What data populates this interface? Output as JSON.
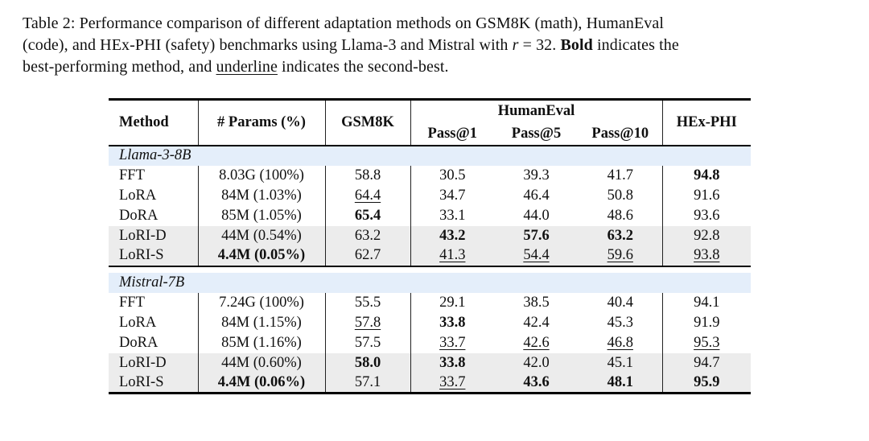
{
  "caption": {
    "lines": [
      {
        "segments": [
          {
            "text": "Table 2: Performance comparison of different adaptation methods on GSM8K (math), HumanEval",
            "style": "normal"
          }
        ]
      },
      {
        "segments": [
          {
            "text": "(code), and HEx-PHI (safety) benchmarks using Llama-3 and Mistral with ",
            "style": "normal"
          },
          {
            "text": "r",
            "style": "italic"
          },
          {
            "text": " = 32. ",
            "style": "normal"
          },
          {
            "text": "Bold",
            "style": "bold"
          },
          {
            "text": " indicates the",
            "style": "normal"
          }
        ]
      },
      {
        "segments": [
          {
            "text": "best-performing method, and ",
            "style": "normal"
          },
          {
            "text": "underline",
            "style": "underline"
          },
          {
            "text": " indicates the second-best.",
            "style": "normal"
          }
        ]
      }
    ]
  },
  "table": {
    "header": {
      "method": "Method",
      "params": "# Params (%)",
      "gsm8k": "GSM8K",
      "humaneval_group": "HumanEval",
      "pass1": "Pass@1",
      "pass5": "Pass@5",
      "pass10": "Pass@10",
      "hexphi": "HEx-PHI"
    },
    "colors": {
      "section_row_bg": "#e4eefa",
      "lori_row_bg": "#ececec",
      "rule_color": "#000000"
    },
    "sections": [
      {
        "title": "Llama-3-8B",
        "rows": [
          {
            "shaded": false,
            "cells": [
              {
                "text": "FFT",
                "style": "normal"
              },
              {
                "text": "8.03G (100%)",
                "style": "normal"
              },
              {
                "text": "58.8",
                "style": "normal"
              },
              {
                "text": "30.5",
                "style": "normal"
              },
              {
                "text": "39.3",
                "style": "normal"
              },
              {
                "text": "41.7",
                "style": "normal"
              },
              {
                "text": "94.8",
                "style": "bold"
              }
            ]
          },
          {
            "shaded": false,
            "cells": [
              {
                "text": "LoRA",
                "style": "normal"
              },
              {
                "text": "84M (1.03%)",
                "style": "normal"
              },
              {
                "text": "64.4",
                "style": "underline"
              },
              {
                "text": "34.7",
                "style": "normal"
              },
              {
                "text": "46.4",
                "style": "normal"
              },
              {
                "text": "50.8",
                "style": "normal"
              },
              {
                "text": "91.6",
                "style": "normal"
              }
            ]
          },
          {
            "shaded": false,
            "cells": [
              {
                "text": "DoRA",
                "style": "normal"
              },
              {
                "text": "85M (1.05%)",
                "style": "normal"
              },
              {
                "text": "65.4",
                "style": "bold"
              },
              {
                "text": "33.1",
                "style": "normal"
              },
              {
                "text": "44.0",
                "style": "normal"
              },
              {
                "text": "48.6",
                "style": "normal"
              },
              {
                "text": "93.6",
                "style": "normal"
              }
            ]
          },
          {
            "shaded": true,
            "cells": [
              {
                "text": "LoRI-D",
                "style": "normal"
              },
              {
                "text": "44M (0.54%)",
                "style": "normal"
              },
              {
                "text": "63.2",
                "style": "normal"
              },
              {
                "text": "43.2",
                "style": "bold"
              },
              {
                "text": "57.6",
                "style": "bold"
              },
              {
                "text": "63.2",
                "style": "bold"
              },
              {
                "text": "92.8",
                "style": "normal"
              }
            ]
          },
          {
            "shaded": true,
            "cells": [
              {
                "text": "LoRI-S",
                "style": "normal"
              },
              {
                "text": "4.4M (0.05%)",
                "style": "bold"
              },
              {
                "text": "62.7",
                "style": "normal"
              },
              {
                "text": "41.3",
                "style": "underline"
              },
              {
                "text": "54.4",
                "style": "underline"
              },
              {
                "text": "59.6",
                "style": "underline"
              },
              {
                "text": "93.8",
                "style": "underline"
              }
            ]
          }
        ]
      },
      {
        "title": "Mistral-7B",
        "rows": [
          {
            "shaded": false,
            "cells": [
              {
                "text": "FFT",
                "style": "normal"
              },
              {
                "text": "7.24G (100%)",
                "style": "normal"
              },
              {
                "text": "55.5",
                "style": "normal"
              },
              {
                "text": "29.1",
                "style": "normal"
              },
              {
                "text": "38.5",
                "style": "normal"
              },
              {
                "text": "40.4",
                "style": "normal"
              },
              {
                "text": "94.1",
                "style": "normal"
              }
            ]
          },
          {
            "shaded": false,
            "cells": [
              {
                "text": "LoRA",
                "style": "normal"
              },
              {
                "text": "84M (1.15%)",
                "style": "normal"
              },
              {
                "text": "57.8",
                "style": "underline"
              },
              {
                "text": "33.8",
                "style": "bold"
              },
              {
                "text": "42.4",
                "style": "normal"
              },
              {
                "text": "45.3",
                "style": "normal"
              },
              {
                "text": "91.9",
                "style": "normal"
              }
            ]
          },
          {
            "shaded": false,
            "cells": [
              {
                "text": "DoRA",
                "style": "normal"
              },
              {
                "text": "85M (1.16%)",
                "style": "normal"
              },
              {
                "text": "57.5",
                "style": "normal"
              },
              {
                "text": "33.7",
                "style": "underline"
              },
              {
                "text": "42.6",
                "style": "underline"
              },
              {
                "text": "46.8",
                "style": "underline"
              },
              {
                "text": "95.3",
                "style": "underline"
              }
            ]
          },
          {
            "shaded": true,
            "cells": [
              {
                "text": "LoRI-D",
                "style": "normal"
              },
              {
                "text": "44M (0.60%)",
                "style": "normal"
              },
              {
                "text": "58.0",
                "style": "bold"
              },
              {
                "text": "33.8",
                "style": "bold"
              },
              {
                "text": "42.0",
                "style": "normal"
              },
              {
                "text": "45.1",
                "style": "normal"
              },
              {
                "text": "94.7",
                "style": "normal"
              }
            ]
          },
          {
            "shaded": true,
            "cells": [
              {
                "text": "LoRI-S",
                "style": "normal"
              },
              {
                "text": "4.4M (0.06%)",
                "style": "bold"
              },
              {
                "text": "57.1",
                "style": "normal"
              },
              {
                "text": "33.7",
                "style": "underline"
              },
              {
                "text": "43.6",
                "style": "bold"
              },
              {
                "text": "48.1",
                "style": "bold"
              },
              {
                "text": "95.9",
                "style": "bold"
              }
            ]
          }
        ]
      }
    ]
  }
}
